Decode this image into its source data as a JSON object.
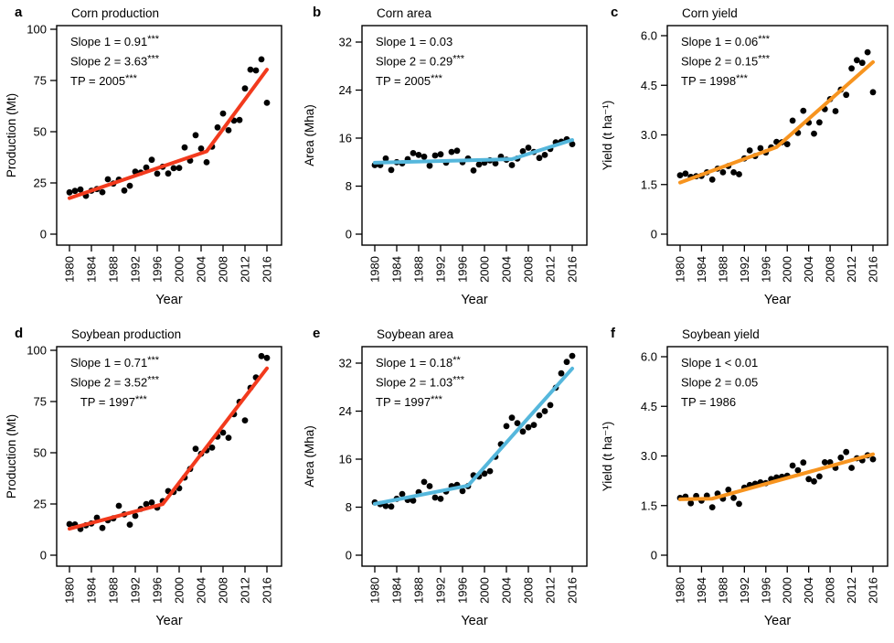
{
  "figure": {
    "background": "#ffffff",
    "frame_color": "#000000",
    "point_color": "#000000",
    "years": [
      1980,
      1981,
      1982,
      1983,
      1984,
      1985,
      1986,
      1987,
      1988,
      1989,
      1990,
      1991,
      1992,
      1993,
      1994,
      1995,
      1996,
      1997,
      1998,
      1999,
      2000,
      2001,
      2002,
      2003,
      2004,
      2005,
      2006,
      2007,
      2008,
      2009,
      2010,
      2011,
      2012,
      2013,
      2014,
      2015,
      2016
    ],
    "x_ticks": [
      1980,
      1984,
      1988,
      1992,
      1996,
      2000,
      2004,
      2008,
      2012,
      2016
    ],
    "xlabel": "Year"
  },
  "chart_data": [
    {
      "type": "scatter",
      "letter": "a",
      "title": "Corn production",
      "ylabel": "Production (Mt)",
      "xlabel": "Year",
      "stats": [
        "Slope 1 = 0.91***",
        "Slope 2 = 3.63***",
        "TP = 2005***"
      ],
      "y_tick_labels": [
        "0",
        "25",
        "50",
        "75",
        "100"
      ],
      "ylim": [
        0,
        100
      ],
      "line_color": "#f23a1d",
      "trend": [
        [
          1980,
          17.6
        ],
        [
          2005,
          40.4
        ],
        [
          2016,
          80.3
        ]
      ],
      "values": [
        20.4,
        21.1,
        21.8,
        18.7,
        21.2,
        22.0,
        20.5,
        26.8,
        24.7,
        26.6,
        21.3,
        23.6,
        30.5,
        30.1,
        32.5,
        36.3,
        29.5,
        32.9,
        29.6,
        32.2,
        32.3,
        42.3,
        35.9,
        48.3,
        41.8,
        35.1,
        42.7,
        52.1,
        58.9,
        50.7,
        55.4,
        55.7,
        71.1,
        80.3,
        79.9,
        85.3,
        64.1
      ]
    },
    {
      "type": "scatter",
      "letter": "b",
      "title": "Corn area",
      "ylabel": "Area (Mha)",
      "xlabel": "Year",
      "stats": [
        "Slope 1 = 0.03",
        "Slope 2 = 0.29***",
        "TP = 2005***"
      ],
      "y_tick_labels": [
        "0",
        "8",
        "16",
        "24",
        "32"
      ],
      "ylim": [
        0,
        32
      ],
      "line_color": "#55b7dc",
      "trend": [
        [
          1980,
          11.9
        ],
        [
          2005,
          12.5
        ],
        [
          2016,
          15.7
        ]
      ],
      "values": [
        11.5,
        11.5,
        12.6,
        10.7,
        12.0,
        11.8,
        12.5,
        13.5,
        13.2,
        12.9,
        11.4,
        13.1,
        13.3,
        11.9,
        13.7,
        13.9,
        12.0,
        12.6,
        10.6,
        11.6,
        11.9,
        12.3,
        11.8,
        12.9,
        12.4,
        11.5,
        12.6,
        13.8,
        14.4,
        13.7,
        12.7,
        13.2,
        14.2,
        15.3,
        15.4,
        15.8,
        15.0
      ]
    },
    {
      "type": "scatter",
      "letter": "c",
      "title": "Corn yield",
      "ylabel": "Yield (t ha⁻¹)",
      "xlabel": "Year",
      "stats": [
        "Slope 1 = 0.06***",
        "Slope 2 = 0.15***",
        "TP = 1998***"
      ],
      "y_tick_labels": [
        "0",
        "1.5",
        "3.0",
        "4.5",
        "6.0"
      ],
      "ylim": [
        0,
        6
      ],
      "line_color": "#f7941f",
      "trend": [
        [
          1980,
          1.56
        ],
        [
          1998,
          2.63
        ],
        [
          2016,
          5.2
        ]
      ],
      "values": [
        1.78,
        1.83,
        1.73,
        1.75,
        1.76,
        1.87,
        1.65,
        1.98,
        1.87,
        2.06,
        1.87,
        1.81,
        2.29,
        2.53,
        2.36,
        2.6,
        2.47,
        2.62,
        2.79,
        2.78,
        2.72,
        3.43,
        3.06,
        3.73,
        3.37,
        3.04,
        3.38,
        3.78,
        4.08,
        3.72,
        4.37,
        4.21,
        5.01,
        5.26,
        5.18,
        5.5,
        4.29
      ]
    },
    {
      "type": "scatter",
      "letter": "d",
      "title": "Soybean production",
      "ylabel": "Production (Mt)",
      "xlabel": "Year",
      "stats": [
        "Slope 1 = 0.71***",
        "Slope 2 = 3.52***",
        "   TP = 1997***"
      ],
      "y_tick_labels": [
        "0",
        "25",
        "50",
        "75",
        "100"
      ],
      "ylim": [
        0,
        100
      ],
      "line_color": "#f23a1d",
      "trend": [
        [
          1980,
          12.9
        ],
        [
          1997,
          24.9
        ],
        [
          2016,
          91.2
        ]
      ],
      "values": [
        15.2,
        15.0,
        12.8,
        14.6,
        15.5,
        18.3,
        13.3,
        17.0,
        18.0,
        24.1,
        19.9,
        14.9,
        19.2,
        22.6,
        24.9,
        25.7,
        23.2,
        26.4,
        31.3,
        30.9,
        32.7,
        37.9,
        42.1,
        51.9,
        49.5,
        51.2,
        52.5,
        57.9,
        59.8,
        57.3,
        68.8,
        74.8,
        65.8,
        81.7,
        86.8,
        97.2,
        96.3
      ]
    },
    {
      "type": "scatter",
      "letter": "e",
      "title": "Soybean area",
      "ylabel": "Area (Mha)",
      "xlabel": "Year",
      "stats": [
        "Slope 1 = 0.18**",
        "Slope 2 = 1.03***",
        "TP = 1997***"
      ],
      "y_tick_labels": [
        "0",
        "8",
        "16",
        "24",
        "32"
      ],
      "ylim": [
        0,
        32
      ],
      "line_color": "#55b7dc",
      "trend": [
        [
          1980,
          8.55
        ],
        [
          1997,
          11.6
        ],
        [
          2016,
          31.1
        ]
      ],
      "values": [
        8.8,
        8.5,
        8.2,
        8.1,
        9.4,
        10.2,
        9.2,
        9.1,
        10.5,
        12.2,
        11.5,
        9.6,
        9.4,
        10.6,
        11.5,
        11.7,
        10.7,
        11.5,
        13.3,
        13.1,
        13.6,
        14.0,
        16.4,
        18.5,
        21.5,
        22.9,
        22.0,
        20.6,
        21.3,
        21.7,
        23.3,
        24.0,
        25.0,
        27.9,
        30.3,
        32.2,
        33.2
      ]
    },
    {
      "type": "scatter",
      "letter": "f",
      "title": "Soybean yield",
      "ylabel": "Yield (t ha⁻¹)",
      "xlabel": "Year",
      "stats": [
        "Slope 1 < 0.01",
        "Slope 2 = 0.05",
        "TP = 1986"
      ],
      "y_tick_labels": [
        "0",
        "1.5",
        "3.0",
        "4.5",
        "6.0"
      ],
      "ylim": [
        0,
        6
      ],
      "line_color": "#f7941f",
      "trend": [
        [
          1980,
          1.69
        ],
        [
          1986,
          1.71
        ],
        [
          2016,
          3.05
        ]
      ],
      "values": [
        1.73,
        1.77,
        1.57,
        1.79,
        1.65,
        1.8,
        1.45,
        1.86,
        1.71,
        1.98,
        1.73,
        1.55,
        2.04,
        2.12,
        2.16,
        2.2,
        2.18,
        2.3,
        2.35,
        2.37,
        2.4,
        2.71,
        2.57,
        2.8,
        2.3,
        2.23,
        2.38,
        2.81,
        2.81,
        2.64,
        2.95,
        3.12,
        2.64,
        2.93,
        2.87,
        3.02,
        2.9
      ]
    }
  ]
}
